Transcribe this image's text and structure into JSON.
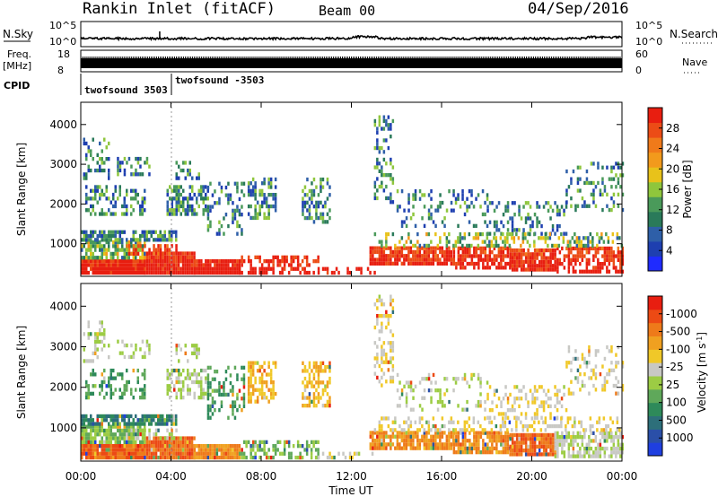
{
  "header": {
    "station": "Rankin Inlet (fitACF)",
    "beam": "Beam 00",
    "date": "04/Sep/2016"
  },
  "panels": {
    "nsky_label": "N.Sky",
    "nsky_ticks": [
      "10^5",
      "10^0"
    ],
    "nsearch_label": "N.Search",
    "nsearch_ticks": [
      "10^5",
      "10^0"
    ],
    "freq_label_1": "Freq.",
    "freq_label_2": "[MHz]",
    "freq_ticks": [
      "18",
      "8"
    ],
    "nave_label": "Nave",
    "nave_ticks": [
      "60",
      "0"
    ],
    "cpid_label": "CPID",
    "cpid_segments": [
      {
        "name": "twofsound 3503",
        "start_h": 0,
        "end_h": 4
      },
      {
        "name": "twofsound -3503",
        "start_h": 4,
        "end_h": 24
      }
    ]
  },
  "colors": {
    "power": [
      "#1f2bff",
      "#1e3fb0",
      "#2e5fa8",
      "#2a7a5a",
      "#4a9a5a",
      "#8fc63c",
      "#e8c21a",
      "#f29a1c",
      "#f07a1a",
      "#ec4c16",
      "#e81e10"
    ],
    "velocity": [
      "#1f3fe0",
      "#2a4fa8",
      "#2d6f7a",
      "#2e8a5a",
      "#5fa85a",
      "#9ccc44",
      "#c8c8c4",
      "#f0c828",
      "#f0a020",
      "#ee7a1a",
      "#ec4a14",
      "#e81e10"
    ]
  },
  "chart_data": [
    {
      "type": "heatmap",
      "name": "power",
      "xlabel": "Time UT",
      "ylabel": "Slant Range [km]",
      "xlim": [
        0,
        24
      ],
      "ylim": [
        180,
        4560
      ],
      "x_ticks": [
        "00:00",
        "04:00",
        "08:00",
        "12:00",
        "16:00",
        "20:00",
        "00:00"
      ],
      "y_ticks": [
        1000,
        2000,
        3000,
        4000
      ],
      "colorbar_label": "Power [dB]",
      "colorbar_ticks": [
        4,
        8,
        12,
        16,
        20,
        24,
        28
      ],
      "colorbar_range": [
        0,
        30
      ]
    },
    {
      "type": "heatmap",
      "name": "velocity",
      "xlabel": "Time UT",
      "ylabel": "Slant Range [km]",
      "xlim": [
        0,
        24
      ],
      "ylim": [
        180,
        4560
      ],
      "x_ticks": [
        "00:00",
        "04:00",
        "08:00",
        "12:00",
        "16:00",
        "20:00",
        "00:00"
      ],
      "y_ticks": [
        1000,
        2000,
        3000,
        4000
      ],
      "colorbar_label": "Velocity [m s^-1]",
      "colorbar_ticks": [
        "1000",
        "500",
        "100",
        "25",
        "-25",
        "-100",
        "-500",
        "-1000"
      ]
    }
  ]
}
